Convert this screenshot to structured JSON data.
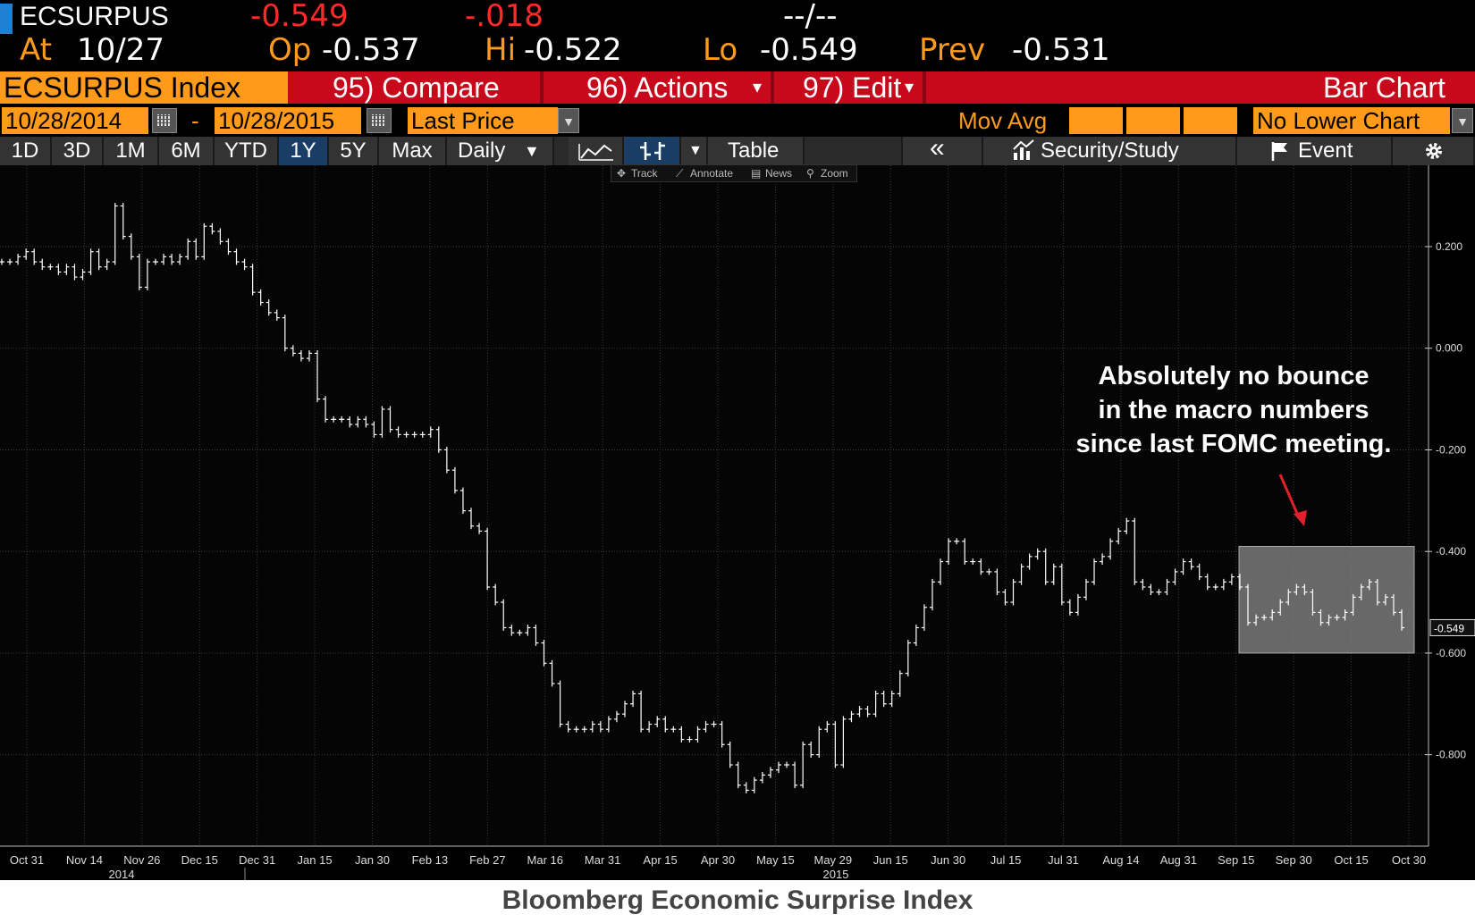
{
  "quote": {
    "ticker": "ECSURPUS",
    "last": "-0.549",
    "change": "-.018",
    "time": "--/--",
    "at_label": "At",
    "at_date": "10/27",
    "op_label": "Op",
    "op_value": "-0.537",
    "hi_label": "Hi",
    "hi_value": "-0.522",
    "lo_label": "Lo",
    "lo_value": "-0.549",
    "prev_label": "Prev",
    "prev_value": "-0.531"
  },
  "function_bar": {
    "security": "ECSURPUS Index",
    "compare": "95) Compare",
    "actions": "96) Actions",
    "actions_caret": "▾",
    "edit": "97) Edit",
    "edit_caret": "▾",
    "chart_type": "Bar Chart"
  },
  "range_row": {
    "start_date": "10/28/2014",
    "dash": "-",
    "end_date": "10/28/2015",
    "price_field": "Last Price",
    "mov_avg_label": "Mov Avg",
    "lower_chart": "No Lower Chart"
  },
  "period_tabs": [
    "1D",
    "3D",
    "1M",
    "6M",
    "YTD",
    "1Y",
    "5Y",
    "Max"
  ],
  "selected_period": "1Y",
  "frequency": "Daily",
  "frequency_caret": "▼",
  "tools": {
    "table": "Table",
    "back": "«",
    "security_study": "Security/Study",
    "event": "Event"
  },
  "mini_toolbar": {
    "track": "Track",
    "annotate": "Annotate",
    "news": "News",
    "zoom": "Zoom"
  },
  "annotation": "Absolutely no bounce\nin the macro numbers\nsince last FOMC meeting.",
  "caption": "Bloomberg Economic Surprise Index",
  "colors": {
    "function_bar": "#c8091b",
    "orange_field": "#ff9a1a",
    "selected_tab": "#1a3d66",
    "annotation_arrow": "#e0202a",
    "price_bars": "#ffffff"
  },
  "chart_data": {
    "type": "bar",
    "subtype": "ohlc",
    "title": "",
    "y_ticks": [
      0.2,
      0.0,
      -0.2,
      -0.4,
      -0.6,
      -0.8
    ],
    "y_tick_labels": [
      "0.200",
      "0.000",
      "-0.200",
      "-0.400",
      "-0.600",
      "-0.800"
    ],
    "ylim": [
      -0.98,
      0.36
    ],
    "last_value_label": "-0.549",
    "x_tick_labels": [
      "Oct 31",
      "Nov 14",
      "Nov 26",
      "Dec 15",
      "Dec 31",
      "Jan 15",
      "Jan 30",
      "Feb 13",
      "Feb 27",
      "Mar 16",
      "Mar 31",
      "Apr 15",
      "Apr 30",
      "May 15",
      "May 29",
      "Jun 15",
      "Jun 30",
      "Jul 15",
      "Jul 31",
      "Aug 14",
      "Aug 31",
      "Sep 15",
      "Sep 30",
      "Oct 15",
      "Oct 30"
    ],
    "year_labels": [
      "2014",
      "2015"
    ],
    "highlight_range": {
      "from": "Sep 17",
      "to": "Oct 28",
      "ylim": [
        -0.6,
        -0.39
      ]
    },
    "grid": true,
    "series": [
      {
        "values": [
          0.17,
          0.17,
          0.18,
          0.19,
          0.17,
          0.16,
          0.16,
          0.15,
          0.16,
          0.14,
          0.15,
          0.19,
          0.16,
          0.17,
          0.28,
          0.22,
          0.18,
          0.12,
          0.17,
          0.17,
          0.18,
          0.17,
          0.18,
          0.21,
          0.18,
          0.24,
          0.23,
          0.21,
          0.19,
          0.17,
          0.16,
          0.11,
          0.09,
          0.07,
          0.06,
          0.0,
          -0.01,
          -0.02,
          -0.01,
          -0.1,
          -0.14,
          -0.14,
          -0.14,
          -0.15,
          -0.14,
          -0.15,
          -0.17,
          -0.12,
          -0.16,
          -0.17,
          -0.17,
          -0.17,
          -0.17,
          -0.16,
          -0.2,
          -0.24,
          -0.28,
          -0.32,
          -0.35,
          -0.36,
          -0.47,
          -0.5,
          -0.55,
          -0.56,
          -0.56,
          -0.55,
          -0.58,
          -0.62,
          -0.66,
          -0.74,
          -0.75,
          -0.75,
          -0.75,
          -0.74,
          -0.75,
          -0.73,
          -0.72,
          -0.7,
          -0.68,
          -0.75,
          -0.74,
          -0.73,
          -0.75,
          -0.75,
          -0.77,
          -0.77,
          -0.75,
          -0.74,
          -0.74,
          -0.78,
          -0.82,
          -0.86,
          -0.87,
          -0.85,
          -0.84,
          -0.83,
          -0.82,
          -0.82,
          -0.86,
          -0.78,
          -0.8,
          -0.75,
          -0.74,
          -0.82,
          -0.73,
          -0.72,
          -0.71,
          -0.72,
          -0.68,
          -0.7,
          -0.68,
          -0.64,
          -0.58,
          -0.55,
          -0.51,
          -0.46,
          -0.42,
          -0.38,
          -0.38,
          -0.42,
          -0.42,
          -0.44,
          -0.44,
          -0.48,
          -0.5,
          -0.46,
          -0.43,
          -0.41,
          -0.4,
          -0.46,
          -0.43,
          -0.5,
          -0.52,
          -0.49,
          -0.46,
          -0.42,
          -0.41,
          -0.38,
          -0.36,
          -0.34,
          -0.46,
          -0.47,
          -0.48,
          -0.48,
          -0.46,
          -0.44,
          -0.42,
          -0.43,
          -0.45,
          -0.47,
          -0.47,
          -0.46,
          -0.45,
          -0.47,
          -0.54,
          -0.53,
          -0.53,
          -0.52,
          -0.5,
          -0.48,
          -0.47,
          -0.48,
          -0.52,
          -0.54,
          -0.53,
          -0.53,
          -0.52,
          -0.49,
          -0.47,
          -0.46,
          -0.5,
          -0.49,
          -0.52,
          -0.55
        ]
      }
    ]
  }
}
